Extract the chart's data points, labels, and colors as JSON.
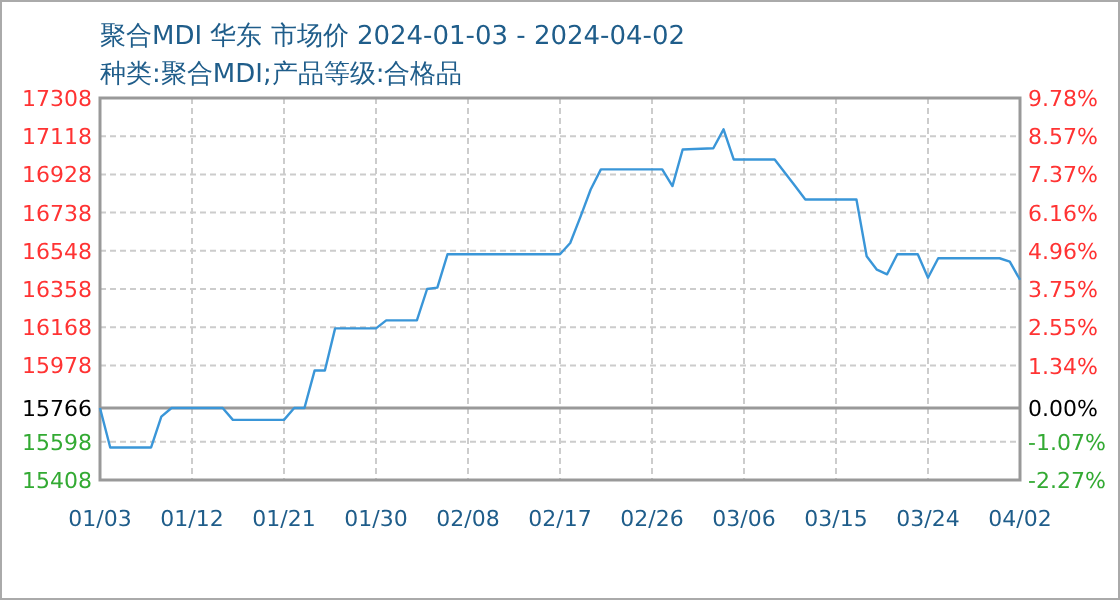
{
  "chart_data": {
    "type": "line",
    "title": "聚合MDI 华东 市场价 2024-01-03 - 2024-04-02",
    "subtitle": "种类:聚合MDI;产品等级:合格品",
    "x": [
      "2024-01-03",
      "2024-01-04",
      "2024-01-08",
      "2024-01-09",
      "2024-01-10",
      "2024-01-15",
      "2024-01-16",
      "2024-01-21",
      "2024-01-22",
      "2024-01-23",
      "2024-01-24",
      "2024-01-25",
      "2024-01-26",
      "2024-01-30",
      "2024-01-31",
      "2024-02-03",
      "2024-02-04",
      "2024-02-05",
      "2024-02-06",
      "2024-02-17",
      "2024-02-18",
      "2024-02-19",
      "2024-02-20",
      "2024-02-21",
      "2024-02-27",
      "2024-02-28",
      "2024-02-29",
      "2024-03-03",
      "2024-03-04",
      "2024-03-05",
      "2024-03-09",
      "2024-03-10",
      "2024-03-11",
      "2024-03-12",
      "2024-03-17",
      "2024-03-18",
      "2024-03-19",
      "2024-03-20",
      "2024-03-21",
      "2024-03-23",
      "2024-03-24",
      "2024-03-25",
      "2024-03-31",
      "2024-04-01",
      "2024-04-02"
    ],
    "series": [
      {
        "color": "#3a96d8",
        "values": [
          15766,
          15570,
          15570,
          15723,
          15766,
          15766,
          15707,
          15707,
          15766,
          15766,
          15953,
          15953,
          16162,
          16162,
          16202,
          16202,
          16358,
          16365,
          16531,
          16531,
          16587,
          16717,
          16853,
          16953,
          16953,
          16870,
          17052,
          17058,
          17152,
          17002,
          17002,
          16936,
          16870,
          16803,
          16803,
          16521,
          16454,
          16431,
          16531,
          16531,
          16414,
          16511,
          16511,
          16494,
          16404
        ]
      }
    ],
    "xlim": [
      "2024-01-03",
      "2024-04-02"
    ],
    "xticks": [
      {
        "value": "2024-01-03",
        "label": "01/03"
      },
      {
        "value": "2024-01-12",
        "label": "01/12"
      },
      {
        "value": "2024-01-21",
        "label": "01/21"
      },
      {
        "value": "2024-01-30",
        "label": "01/30"
      },
      {
        "value": "2024-02-08",
        "label": "02/08"
      },
      {
        "value": "2024-02-17",
        "label": "02/17"
      },
      {
        "value": "2024-02-26",
        "label": "02/26"
      },
      {
        "value": "2024-03-06",
        "label": "03/06"
      },
      {
        "value": "2024-03-15",
        "label": "03/15"
      },
      {
        "value": "2024-03-24",
        "label": "03/24"
      },
      {
        "value": "2024-04-02",
        "label": "04/02"
      }
    ],
    "ylim": [
      15408,
      17308
    ],
    "yticks": [
      15408,
      15598,
      15766,
      15978,
      16168,
      16358,
      16548,
      16738,
      16928,
      17118,
      17308
    ],
    "y2lim": [
      -2.27,
      9.78
    ],
    "y2ticks": [
      {
        "value": -2.27,
        "label": "-2.27%"
      },
      {
        "value": -1.07,
        "label": "-1.07%"
      },
      {
        "value": 0,
        "label": "0.00%"
      },
      {
        "value": 1.34,
        "label": "1.34%"
      },
      {
        "value": 2.55,
        "label": "2.55%"
      },
      {
        "value": 3.75,
        "label": "3.75%"
      },
      {
        "value": 4.96,
        "label": "4.96%"
      },
      {
        "value": 6.16,
        "label": "6.16%"
      },
      {
        "value": 7.37,
        "label": "7.37%"
      },
      {
        "value": 8.57,
        "label": "8.57%"
      },
      {
        "value": 9.78,
        "label": "9.78%"
      }
    ],
    "ref_lines": [
      {
        "axis": "y",
        "value": 15766,
        "color": "#999999"
      }
    ],
    "grid": true,
    "line_style": "solid",
    "marker": "none"
  }
}
